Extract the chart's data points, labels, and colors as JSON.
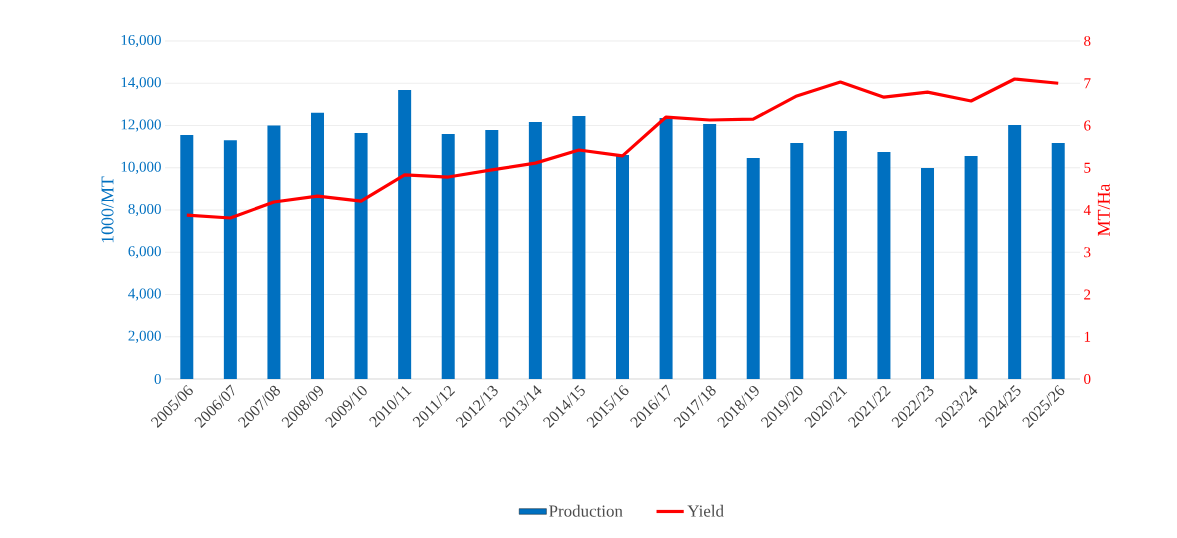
{
  "chart_data": {
    "type": "bar",
    "ylabel": "1000/MT",
    "y2label": "MT/Ha",
    "categories": [
      "2005/06",
      "2006/07",
      "2007/08",
      "2008/09",
      "2009/10",
      "2010/11",
      "2011/12",
      "2012/13",
      "2013/14",
      "2014/15",
      "2015/16",
      "2016/17",
      "2017/18",
      "2018/19",
      "2019/20",
      "2020/21",
      "2021/22",
      "2022/23",
      "2023/24",
      "2024/25",
      "2025/26"
    ],
    "series": [
      {
        "name": "Production",
        "color": "#0070c0",
        "values": [
          11550,
          11300,
          12000,
          12600,
          11650,
          13680,
          11600,
          11790,
          12170,
          12450,
          10600,
          12360,
          12070,
          10460,
          11170,
          11740,
          10750,
          9990,
          10560,
          12020,
          11170
        ]
      },
      {
        "name": "Yield",
        "type": "line",
        "axis": "y2",
        "color": "#ff0000",
        "values": [
          3.88,
          3.81,
          4.19,
          4.33,
          4.21,
          4.83,
          4.78,
          4.95,
          5.11,
          5.42,
          5.28,
          6.2,
          6.13,
          6.15,
          6.7,
          7.03,
          6.67,
          6.79,
          6.58,
          7.1,
          7.0
        ]
      }
    ],
    "ylim": [
      0,
      16000
    ],
    "yticks": [
      {
        "value": 0,
        "label": "0"
      },
      {
        "value": 2000,
        "label": "2,000"
      },
      {
        "value": 4000,
        "label": "4,000"
      },
      {
        "value": 6000,
        "label": "6,000"
      },
      {
        "value": 8000,
        "label": "8,000"
      },
      {
        "value": 10000,
        "label": "10,000"
      },
      {
        "value": 12000,
        "label": "12,000"
      },
      {
        "value": 14000,
        "label": "14,000"
      },
      {
        "value": 16000,
        "label": "16,000"
      }
    ],
    "y2lim": [
      0,
      8
    ],
    "y2ticks": [
      0,
      1,
      2,
      3,
      4,
      5,
      6,
      7,
      8
    ],
    "grid": "y",
    "legend": "bottom"
  }
}
